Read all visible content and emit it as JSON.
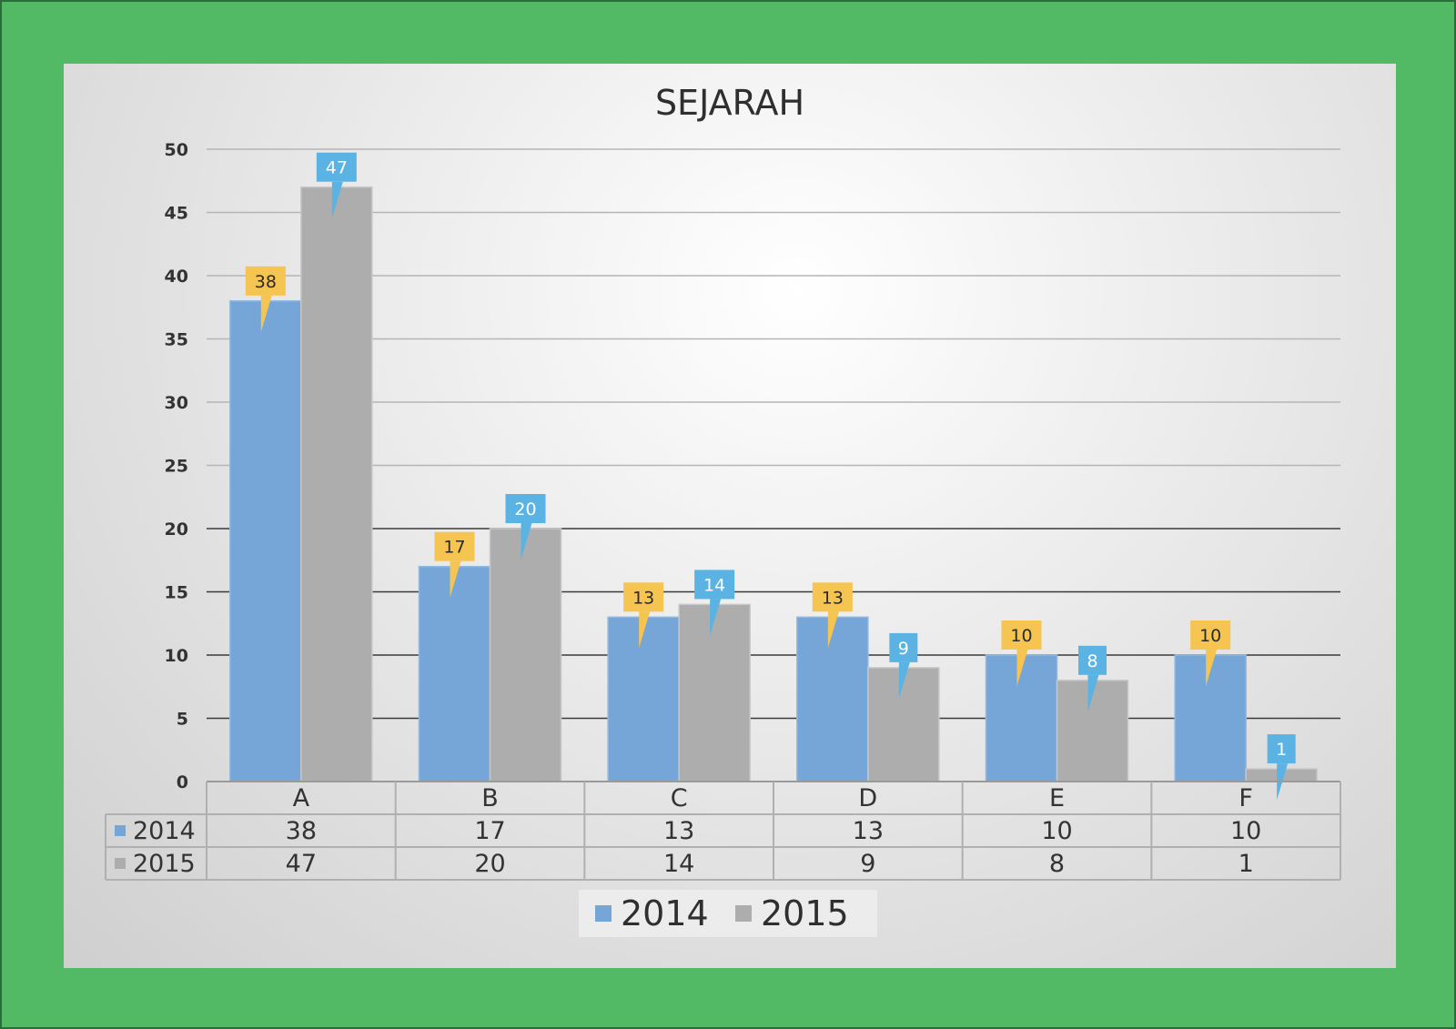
{
  "chart_data": {
    "type": "bar",
    "title": "SEJARAH",
    "categories": [
      "A",
      "B",
      "C",
      "D",
      "E",
      "F"
    ],
    "series": [
      {
        "name": "2014",
        "values": [
          38,
          17,
          13,
          13,
          10,
          10
        ],
        "color": "#76a6d8",
        "label_color": "#f5c451"
      },
      {
        "name": "2015",
        "values": [
          47,
          20,
          14,
          9,
          8,
          1
        ],
        "color": "#adadad",
        "label_color": "#5ab3e3"
      }
    ],
    "ylim": [
      0,
      50
    ],
    "yticks": [
      "0",
      "5",
      "10",
      "15",
      "20",
      "25",
      "30",
      "35",
      "40",
      "45",
      "50"
    ],
    "legend": "bottom",
    "data_table": true,
    "grid": true
  }
}
